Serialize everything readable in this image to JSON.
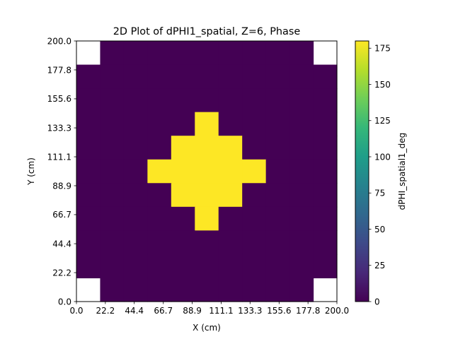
{
  "chart_data": {
    "type": "heatmap",
    "title": "2D Plot of dPHI1_spatial, Z=6, Phase",
    "xlabel": "X (cm)",
    "ylabel": "Y (cm)",
    "xlim": [
      0,
      200
    ],
    "ylim": [
      0,
      200
    ],
    "x_ticks": [
      "0.0",
      "22.2",
      "44.4",
      "66.7",
      "88.9",
      "111.1",
      "133.3",
      "155.6",
      "177.8",
      "200.0"
    ],
    "y_ticks": [
      "0.0",
      "22.2",
      "44.4",
      "66.7",
      "88.9",
      "111.1",
      "133.3",
      "155.6",
      "177.8",
      "200.0"
    ],
    "grid_size": [
      11,
      11
    ],
    "cell_size_cm": 18.18,
    "empty_value": null,
    "values_row_order": "top-to-bottom",
    "values": [
      [
        null,
        0,
        0,
        0,
        0,
        0,
        0,
        0,
        0,
        0,
        null
      ],
      [
        0,
        0,
        0,
        0,
        0,
        0,
        0,
        0,
        0,
        0,
        0
      ],
      [
        0,
        0,
        0,
        0,
        0,
        0,
        0,
        0,
        0,
        0,
        0
      ],
      [
        0,
        0,
        0,
        0,
        0,
        180,
        0,
        0,
        0,
        0,
        0
      ],
      [
        0,
        0,
        0,
        0,
        180,
        180,
        180,
        0,
        0,
        0,
        0
      ],
      [
        0,
        0,
        0,
        180,
        180,
        180,
        180,
        180,
        0,
        0,
        0
      ],
      [
        0,
        0,
        0,
        0,
        180,
        180,
        180,
        0,
        0,
        0,
        0
      ],
      [
        0,
        0,
        0,
        0,
        0,
        180,
        0,
        0,
        0,
        0,
        0
      ],
      [
        0,
        0,
        0,
        0,
        0,
        0,
        0,
        0,
        0,
        0,
        0
      ],
      [
        0,
        0,
        0,
        0,
        0,
        0,
        0,
        0,
        0,
        0,
        0
      ],
      [
        null,
        0,
        0,
        0,
        0,
        0,
        0,
        0,
        0,
        0,
        null
      ]
    ],
    "colorbar": {
      "label": "dPHI_spatial1_deg",
      "colormap": "viridis",
      "vmin": 0,
      "vmax": 180,
      "ticks": [
        "0",
        "25",
        "50",
        "75",
        "100",
        "125",
        "150",
        "175"
      ],
      "tick_values": [
        0,
        25,
        50,
        75,
        100,
        125,
        150,
        175
      ]
    },
    "colors": {
      "low": "#440154",
      "high": "#fde725",
      "viridis_stops": [
        "#440154",
        "#482878",
        "#3e4989",
        "#31688e",
        "#26828e",
        "#1f9e89",
        "#35b779",
        "#6ece58",
        "#b5de2b",
        "#fde725"
      ]
    },
    "grid": false
  }
}
